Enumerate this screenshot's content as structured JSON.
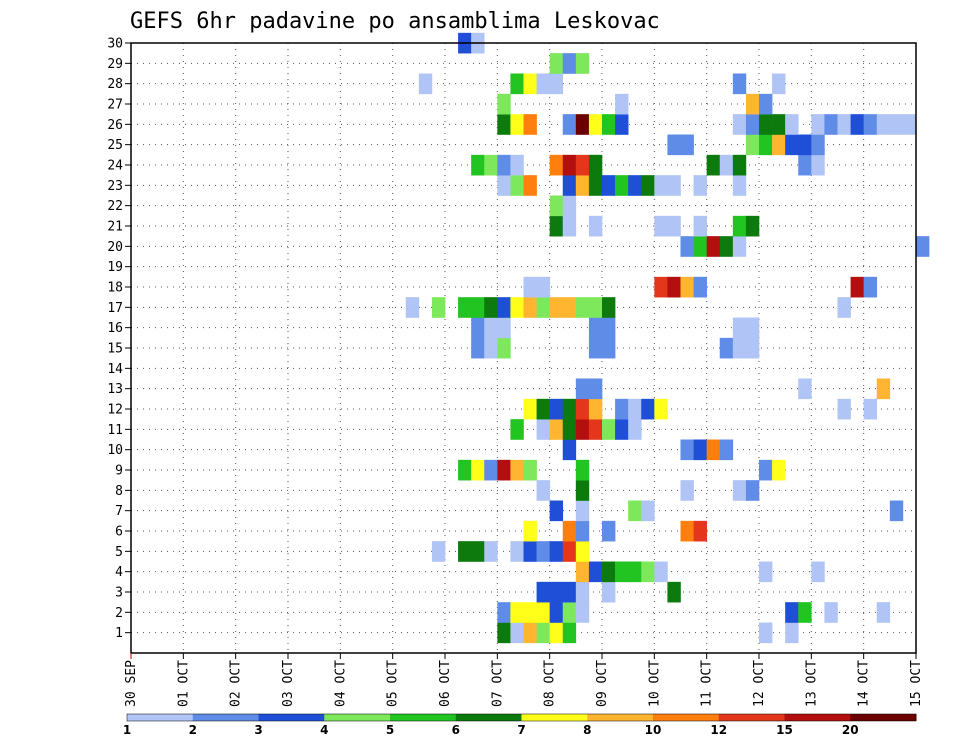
{
  "chart_data": {
    "type": "heatmap",
    "title": "GEFS 6hr padavine po ansamblima Leskovac",
    "xlabel": "",
    "ylabel": "",
    "x_tick_labels": [
      "30 SEP",
      "01 OCT",
      "02 OCT",
      "03 OCT",
      "04 OCT",
      "05 OCT",
      "06 OCT",
      "07 OCT",
      "08 OCT",
      "09 OCT",
      "10 OCT",
      "11 OCT",
      "12 OCT",
      "13 OCT",
      "14 OCT",
      "15 OCT"
    ],
    "x_range_days": [
      0,
      15
    ],
    "x_step_hours": 6,
    "y_tick_labels": [
      "1",
      "2",
      "3",
      "4",
      "5",
      "6",
      "7",
      "8",
      "9",
      "10",
      "11",
      "12",
      "13",
      "14",
      "15",
      "16",
      "17",
      "18",
      "19",
      "20",
      "21",
      "22",
      "23",
      "24",
      "25",
      "26",
      "27",
      "28",
      "29",
      "30"
    ],
    "y_range": [
      0,
      30
    ],
    "grid": true,
    "legend_placement": "bottom",
    "legend": {
      "labels": [
        "1",
        "2",
        "3",
        "4",
        "5",
        "6",
        "7",
        "8",
        "10",
        "12",
        "15",
        "20"
      ],
      "colors": [
        "#b0c4f5",
        "#5f8ce6",
        "#1f4fd6",
        "#7de85b",
        "#22c422",
        "#0d7a0d",
        "#ffff1a",
        "#ffb52f",
        "#ff7f0e",
        "#e4361b",
        "#b30f0f",
        "#6b0000"
      ]
    },
    "cells": [
      {
        "ensemble": 1,
        "step": 28,
        "class": 6
      },
      {
        "ensemble": 1,
        "step": 29,
        "class": 1
      },
      {
        "ensemble": 1,
        "step": 30,
        "class": 8
      },
      {
        "ensemble": 1,
        "step": 31,
        "class": 4
      },
      {
        "ensemble": 1,
        "step": 32,
        "class": 7
      },
      {
        "ensemble": 1,
        "step": 33,
        "class": 5
      },
      {
        "ensemble": 1,
        "step": 48,
        "class": 1
      },
      {
        "ensemble": 1,
        "step": 50,
        "class": 1
      },
      {
        "ensemble": 2,
        "step": 28,
        "class": 2
      },
      {
        "ensemble": 2,
        "step": 29,
        "class": 7
      },
      {
        "ensemble": 2,
        "step": 30,
        "class": 7
      },
      {
        "ensemble": 2,
        "step": 31,
        "class": 7
      },
      {
        "ensemble": 2,
        "step": 32,
        "class": 3
      },
      {
        "ensemble": 2,
        "step": 33,
        "class": 4
      },
      {
        "ensemble": 2,
        "step": 34,
        "class": 1
      },
      {
        "ensemble": 2,
        "step": 50,
        "class": 3
      },
      {
        "ensemble": 2,
        "step": 51,
        "class": 5
      },
      {
        "ensemble": 2,
        "step": 53,
        "class": 1
      },
      {
        "ensemble": 2,
        "step": 57,
        "class": 1
      },
      {
        "ensemble": 3,
        "step": 31,
        "class": 3
      },
      {
        "ensemble": 3,
        "step": 32,
        "class": 3
      },
      {
        "ensemble": 3,
        "step": 33,
        "class": 3
      },
      {
        "ensemble": 3,
        "step": 34,
        "class": 1
      },
      {
        "ensemble": 3,
        "step": 36,
        "class": 1
      },
      {
        "ensemble": 3,
        "step": 41,
        "class": 6
      },
      {
        "ensemble": 4,
        "step": 34,
        "class": 8
      },
      {
        "ensemble": 4,
        "step": 35,
        "class": 3
      },
      {
        "ensemble": 4,
        "step": 36,
        "class": 6
      },
      {
        "ensemble": 4,
        "step": 37,
        "class": 5
      },
      {
        "ensemble": 4,
        "step": 38,
        "class": 5
      },
      {
        "ensemble": 4,
        "step": 39,
        "class": 4
      },
      {
        "ensemble": 4,
        "step": 40,
        "class": 1
      },
      {
        "ensemble": 4,
        "step": 48,
        "class": 1
      },
      {
        "ensemble": 4,
        "step": 52,
        "class": 1
      },
      {
        "ensemble": 5,
        "step": 23,
        "class": 1
      },
      {
        "ensemble": 5,
        "step": 25,
        "class": 6
      },
      {
        "ensemble": 5,
        "step": 26,
        "class": 6
      },
      {
        "ensemble": 5,
        "step": 27,
        "class": 1
      },
      {
        "ensemble": 5,
        "step": 29,
        "class": 1
      },
      {
        "ensemble": 5,
        "step": 30,
        "class": 3
      },
      {
        "ensemble": 5,
        "step": 31,
        "class": 2
      },
      {
        "ensemble": 5,
        "step": 32,
        "class": 3
      },
      {
        "ensemble": 5,
        "step": 33,
        "class": 10
      },
      {
        "ensemble": 5,
        "step": 34,
        "class": 7
      },
      {
        "ensemble": 6,
        "step": 30,
        "class": 7
      },
      {
        "ensemble": 6,
        "step": 33,
        "class": 9
      },
      {
        "ensemble": 6,
        "step": 34,
        "class": 2
      },
      {
        "ensemble": 6,
        "step": 36,
        "class": 2
      },
      {
        "ensemble": 6,
        "step": 42,
        "class": 9
      },
      {
        "ensemble": 6,
        "step": 43,
        "class": 10
      },
      {
        "ensemble": 7,
        "step": 32,
        "class": 3
      },
      {
        "ensemble": 7,
        "step": 34,
        "class": 1
      },
      {
        "ensemble": 7,
        "step": 38,
        "class": 4
      },
      {
        "ensemble": 7,
        "step": 39,
        "class": 1
      },
      {
        "ensemble": 7,
        "step": 58,
        "class": 2
      },
      {
        "ensemble": 8,
        "step": 31,
        "class": 1
      },
      {
        "ensemble": 8,
        "step": 34,
        "class": 6
      },
      {
        "ensemble": 8,
        "step": 42,
        "class": 1
      },
      {
        "ensemble": 8,
        "step": 46,
        "class": 1
      },
      {
        "ensemble": 8,
        "step": 47,
        "class": 2
      },
      {
        "ensemble": 9,
        "step": 25,
        "class": 5
      },
      {
        "ensemble": 9,
        "step": 26,
        "class": 7
      },
      {
        "ensemble": 9,
        "step": 27,
        "class": 2
      },
      {
        "ensemble": 9,
        "step": 28,
        "class": 11
      },
      {
        "ensemble": 9,
        "step": 29,
        "class": 8
      },
      {
        "ensemble": 9,
        "step": 30,
        "class": 4
      },
      {
        "ensemble": 9,
        "step": 34,
        "class": 5
      },
      {
        "ensemble": 9,
        "step": 48,
        "class": 2
      },
      {
        "ensemble": 9,
        "step": 49,
        "class": 7
      },
      {
        "ensemble": 10,
        "step": 33,
        "class": 3
      },
      {
        "ensemble": 10,
        "step": 42,
        "class": 2
      },
      {
        "ensemble": 10,
        "step": 43,
        "class": 3
      },
      {
        "ensemble": 10,
        "step": 44,
        "class": 9
      },
      {
        "ensemble": 10,
        "step": 45,
        "class": 2
      },
      {
        "ensemble": 11,
        "step": 29,
        "class": 5
      },
      {
        "ensemble": 11,
        "step": 31,
        "class": 1
      },
      {
        "ensemble": 11,
        "step": 32,
        "class": 8
      },
      {
        "ensemble": 11,
        "step": 33,
        "class": 6
      },
      {
        "ensemble": 11,
        "step": 34,
        "class": 11
      },
      {
        "ensemble": 11,
        "step": 35,
        "class": 10
      },
      {
        "ensemble": 11,
        "step": 36,
        "class": 4
      },
      {
        "ensemble": 11,
        "step": 37,
        "class": 3
      },
      {
        "ensemble": 11,
        "step": 38,
        "class": 1
      },
      {
        "ensemble": 12,
        "step": 30,
        "class": 7
      },
      {
        "ensemble": 12,
        "step": 31,
        "class": 6
      },
      {
        "ensemble": 12,
        "step": 32,
        "class": 3
      },
      {
        "ensemble": 12,
        "step": 33,
        "class": 6
      },
      {
        "ensemble": 12,
        "step": 34,
        "class": 10
      },
      {
        "ensemble": 12,
        "step": 35,
        "class": 8
      },
      {
        "ensemble": 12,
        "step": 37,
        "class": 2
      },
      {
        "ensemble": 12,
        "step": 38,
        "class": 1
      },
      {
        "ensemble": 12,
        "step": 39,
        "class": 3
      },
      {
        "ensemble": 12,
        "step": 40,
        "class": 7
      },
      {
        "ensemble": 12,
        "step": 54,
        "class": 1
      },
      {
        "ensemble": 12,
        "step": 56,
        "class": 1
      },
      {
        "ensemble": 13,
        "step": 34,
        "class": 2
      },
      {
        "ensemble": 13,
        "step": 35,
        "class": 2
      },
      {
        "ensemble": 13,
        "step": 51,
        "class": 1
      },
      {
        "ensemble": 13,
        "step": 57,
        "class": 8
      },
      {
        "ensemble": 15,
        "step": 26,
        "class": 2
      },
      {
        "ensemble": 15,
        "step": 27,
        "class": 1
      },
      {
        "ensemble": 15,
        "step": 28,
        "class": 4
      },
      {
        "ensemble": 15,
        "step": 35,
        "class": 2
      },
      {
        "ensemble": 15,
        "step": 36,
        "class": 2
      },
      {
        "ensemble": 15,
        "step": 45,
        "class": 2
      },
      {
        "ensemble": 15,
        "step": 46,
        "class": 1
      },
      {
        "ensemble": 15,
        "step": 47,
        "class": 1
      },
      {
        "ensemble": 16,
        "step": 26,
        "class": 2
      },
      {
        "ensemble": 16,
        "step": 27,
        "class": 1
      },
      {
        "ensemble": 16,
        "step": 28,
        "class": 1
      },
      {
        "ensemble": 16,
        "step": 35,
        "class": 2
      },
      {
        "ensemble": 16,
        "step": 36,
        "class": 2
      },
      {
        "ensemble": 16,
        "step": 46,
        "class": 1
      },
      {
        "ensemble": 16,
        "step": 47,
        "class": 1
      },
      {
        "ensemble": 17,
        "step": 21,
        "class": 1
      },
      {
        "ensemble": 17,
        "step": 23,
        "class": 4
      },
      {
        "ensemble": 17,
        "step": 25,
        "class": 5
      },
      {
        "ensemble": 17,
        "step": 26,
        "class": 5
      },
      {
        "ensemble": 17,
        "step": 27,
        "class": 6
      },
      {
        "ensemble": 17,
        "step": 28,
        "class": 3
      },
      {
        "ensemble": 17,
        "step": 29,
        "class": 7
      },
      {
        "ensemble": 17,
        "step": 30,
        "class": 8
      },
      {
        "ensemble": 17,
        "step": 31,
        "class": 4
      },
      {
        "ensemble": 17,
        "step": 32,
        "class": 8
      },
      {
        "ensemble": 17,
        "step": 33,
        "class": 8
      },
      {
        "ensemble": 17,
        "step": 34,
        "class": 4
      },
      {
        "ensemble": 17,
        "step": 35,
        "class": 4
      },
      {
        "ensemble": 17,
        "step": 36,
        "class": 6
      },
      {
        "ensemble": 17,
        "step": 54,
        "class": 1
      },
      {
        "ensemble": 18,
        "step": 30,
        "class": 1
      },
      {
        "ensemble": 18,
        "step": 31,
        "class": 1
      },
      {
        "ensemble": 18,
        "step": 40,
        "class": 10
      },
      {
        "ensemble": 18,
        "step": 41,
        "class": 11
      },
      {
        "ensemble": 18,
        "step": 42,
        "class": 8
      },
      {
        "ensemble": 18,
        "step": 43,
        "class": 2
      },
      {
        "ensemble": 18,
        "step": 55,
        "class": 11
      },
      {
        "ensemble": 18,
        "step": 56,
        "class": 2
      },
      {
        "ensemble": 20,
        "step": 42,
        "class": 2
      },
      {
        "ensemble": 20,
        "step": 43,
        "class": 5
      },
      {
        "ensemble": 20,
        "step": 44,
        "class": 11
      },
      {
        "ensemble": 20,
        "step": 45,
        "class": 6
      },
      {
        "ensemble": 20,
        "step": 46,
        "class": 1
      },
      {
        "ensemble": 20,
        "step": 60,
        "class": 2
      },
      {
        "ensemble": 21,
        "step": 32,
        "class": 6
      },
      {
        "ensemble": 21,
        "step": 33,
        "class": 1
      },
      {
        "ensemble": 21,
        "step": 35,
        "class": 1
      },
      {
        "ensemble": 21,
        "step": 40,
        "class": 1
      },
      {
        "ensemble": 21,
        "step": 41,
        "class": 1
      },
      {
        "ensemble": 21,
        "step": 43,
        "class": 1
      },
      {
        "ensemble": 21,
        "step": 46,
        "class": 5
      },
      {
        "ensemble": 21,
        "step": 47,
        "class": 6
      },
      {
        "ensemble": 22,
        "step": 32,
        "class": 4
      },
      {
        "ensemble": 22,
        "step": 33,
        "class": 1
      },
      {
        "ensemble": 23,
        "step": 28,
        "class": 1
      },
      {
        "ensemble": 23,
        "step": 29,
        "class": 4
      },
      {
        "ensemble": 23,
        "step": 30,
        "class": 9
      },
      {
        "ensemble": 23,
        "step": 33,
        "class": 3
      },
      {
        "ensemble": 23,
        "step": 34,
        "class": 8
      },
      {
        "ensemble": 23,
        "step": 35,
        "class": 6
      },
      {
        "ensemble": 23,
        "step": 36,
        "class": 3
      },
      {
        "ensemble": 23,
        "step": 37,
        "class": 5
      },
      {
        "ensemble": 23,
        "step": 38,
        "class": 3
      },
      {
        "ensemble": 23,
        "step": 39,
        "class": 6
      },
      {
        "ensemble": 23,
        "step": 40,
        "class": 1
      },
      {
        "ensemble": 23,
        "step": 41,
        "class": 1
      },
      {
        "ensemble": 23,
        "step": 43,
        "class": 1
      },
      {
        "ensemble": 23,
        "step": 46,
        "class": 1
      },
      {
        "ensemble": 24,
        "step": 26,
        "class": 5
      },
      {
        "ensemble": 24,
        "step": 27,
        "class": 4
      },
      {
        "ensemble": 24,
        "step": 28,
        "class": 2
      },
      {
        "ensemble": 24,
        "step": 29,
        "class": 1
      },
      {
        "ensemble": 24,
        "step": 32,
        "class": 9
      },
      {
        "ensemble": 24,
        "step": 33,
        "class": 11
      },
      {
        "ensemble": 24,
        "step": 34,
        "class": 10
      },
      {
        "ensemble": 24,
        "step": 35,
        "class": 6
      },
      {
        "ensemble": 24,
        "step": 44,
        "class": 6
      },
      {
        "ensemble": 24,
        "step": 45,
        "class": 1
      },
      {
        "ensemble": 24,
        "step": 46,
        "class": 6
      },
      {
        "ensemble": 24,
        "step": 51,
        "class": 2
      },
      {
        "ensemble": 24,
        "step": 52,
        "class": 1
      },
      {
        "ensemble": 25,
        "step": 41,
        "class": 2
      },
      {
        "ensemble": 25,
        "step": 42,
        "class": 2
      },
      {
        "ensemble": 25,
        "step": 47,
        "class": 4
      },
      {
        "ensemble": 25,
        "step": 48,
        "class": 5
      },
      {
        "ensemble": 25,
        "step": 49,
        "class": 8
      },
      {
        "ensemble": 25,
        "step": 50,
        "class": 3
      },
      {
        "ensemble": 25,
        "step": 51,
        "class": 3
      },
      {
        "ensemble": 25,
        "step": 52,
        "class": 2
      },
      {
        "ensemble": 26,
        "step": 28,
        "class": 6
      },
      {
        "ensemble": 26,
        "step": 29,
        "class": 7
      },
      {
        "ensemble": 26,
        "step": 30,
        "class": 9
      },
      {
        "ensemble": 26,
        "step": 33,
        "class": 2
      },
      {
        "ensemble": 26,
        "step": 34,
        "class": 12
      },
      {
        "ensemble": 26,
        "step": 35,
        "class": 7
      },
      {
        "ensemble": 26,
        "step": 36,
        "class": 5
      },
      {
        "ensemble": 26,
        "step": 37,
        "class": 3
      },
      {
        "ensemble": 26,
        "step": 46,
        "class": 1
      },
      {
        "ensemble": 26,
        "step": 47,
        "class": 2
      },
      {
        "ensemble": 26,
        "step": 48,
        "class": 6
      },
      {
        "ensemble": 26,
        "step": 49,
        "class": 6
      },
      {
        "ensemble": 26,
        "step": 50,
        "class": 1
      },
      {
        "ensemble": 26,
        "step": 52,
        "class": 1
      },
      {
        "ensemble": 26,
        "step": 53,
        "class": 2
      },
      {
        "ensemble": 26,
        "step": 54,
        "class": 1
      },
      {
        "ensemble": 26,
        "step": 55,
        "class": 3
      },
      {
        "ensemble": 26,
        "step": 56,
        "class": 2
      },
      {
        "ensemble": 26,
        "step": 57,
        "class": 1
      },
      {
        "ensemble": 26,
        "step": 58,
        "class": 1
      },
      {
        "ensemble": 26,
        "step": 59,
        "class": 1
      },
      {
        "ensemble": 27,
        "step": 28,
        "class": 4
      },
      {
        "ensemble": 27,
        "step": 37,
        "class": 1
      },
      {
        "ensemble": 27,
        "step": 47,
        "class": 8
      },
      {
        "ensemble": 27,
        "step": 48,
        "class": 2
      },
      {
        "ensemble": 28,
        "step": 22,
        "class": 1
      },
      {
        "ensemble": 28,
        "step": 29,
        "class": 5
      },
      {
        "ensemble": 28,
        "step": 30,
        "class": 7
      },
      {
        "ensemble": 28,
        "step": 31,
        "class": 1
      },
      {
        "ensemble": 28,
        "step": 32,
        "class": 1
      },
      {
        "ensemble": 28,
        "step": 46,
        "class": 2
      },
      {
        "ensemble": 28,
        "step": 49,
        "class": 1
      },
      {
        "ensemble": 29,
        "step": 32,
        "class": 4
      },
      {
        "ensemble": 29,
        "step": 33,
        "class": 2
      },
      {
        "ensemble": 29,
        "step": 34,
        "class": 4
      },
      {
        "ensemble": 30,
        "step": 25,
        "class": 3
      },
      {
        "ensemble": 30,
        "step": 26,
        "class": 1
      }
    ]
  }
}
